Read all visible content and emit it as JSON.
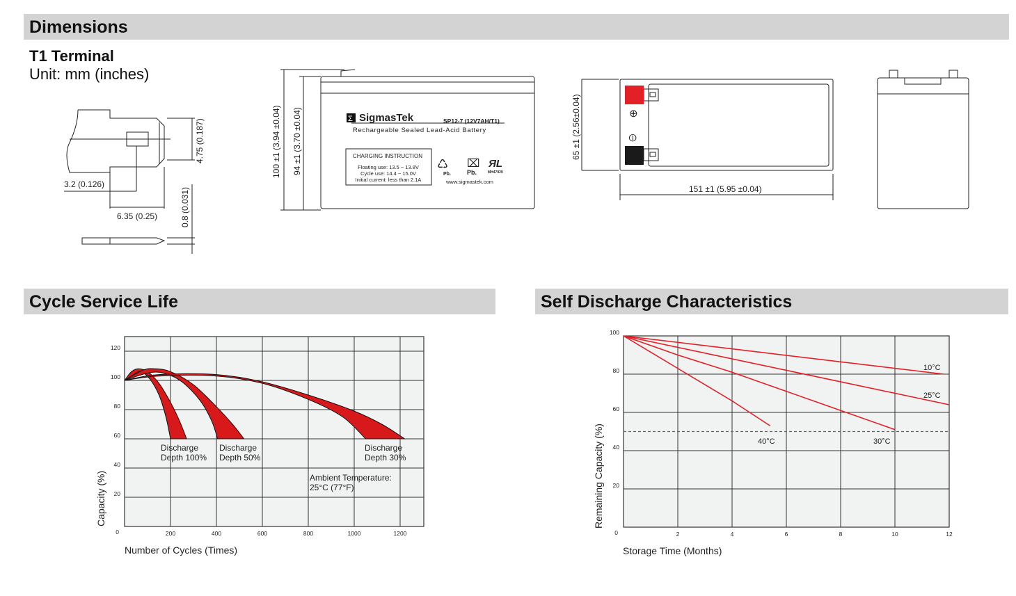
{
  "sections": {
    "dimensions": "Dimensions",
    "cycle": "Cycle Service Life",
    "self_discharge": "Self Discharge Characteristics"
  },
  "terminal": {
    "title": "T1 Terminal",
    "unit": "Unit: mm (inches)",
    "dim_height": "4.75 (0.187)",
    "dim_hole": "3.2 (0.126)",
    "dim_width": "6.35 (0.25)",
    "dim_thickness": "0.8 (0.031)"
  },
  "battery": {
    "brand": "SigmasTek",
    "model": "SP12-7 (12V7AH/T1)",
    "description": "Rechargeable Sealed Lead-Acid Battery",
    "charging_title": "CHARGING INSTRUCTION",
    "charging_lines": [
      "Floating use: 13.5 ~ 13.8V",
      "Cycle use: 14.4 ~ 15.0V",
      "Initial current: less than 2.1A"
    ],
    "recycle_label": "Pb.",
    "bin_label": "Pb.",
    "ul_code": "MH47929",
    "website": "www.sigmastek.com",
    "dim_total_height": "100 ±1 (3.94 ±0.04)",
    "dim_case_height": "94 ±1 (3.70 ±0.04)",
    "dim_depth": "65 ±1 (2.56±0.04)",
    "dim_length": "151 ±1 (5.95 ±0.04)",
    "positive_symbol": "⊕",
    "negative_symbol": "⦶",
    "colors": {
      "positive": "#e32025",
      "negative": "#1a1a1a"
    }
  },
  "chart_data": [
    {
      "type": "area",
      "title": "Cycle Service Life",
      "xlabel": "Number of Cycles (Times)",
      "ylabel": "Capacity (%)",
      "xlim": [
        0,
        1300
      ],
      "ylim": [
        0,
        130
      ],
      "xticks": [
        200,
        400,
        600,
        800,
        1000,
        1200
      ],
      "yticks": [
        0,
        20,
        40,
        60,
        80,
        100,
        120
      ],
      "origin_label": "0",
      "grid": true,
      "band_color": "#d7191c",
      "annotation": [
        "Ambient Temperature:",
        "25°C (77°F)"
      ],
      "series": [
        {
          "name": "Discharge Depth 100%",
          "label": [
            "Discharge",
            "Depth 100%"
          ],
          "outer": [
            [
              0,
              100
            ],
            [
              30,
              106
            ],
            [
              60,
              108
            ],
            [
              100,
              106
            ],
            [
              150,
              98
            ],
            [
              200,
              85
            ],
            [
              240,
              72
            ],
            [
              270,
              60
            ]
          ],
          "inner": [
            [
              0,
              100
            ],
            [
              40,
              104
            ],
            [
              70,
              106
            ],
            [
              110,
              101
            ],
            [
              150,
              90
            ],
            [
              180,
              75
            ],
            [
              200,
              60
            ]
          ]
        },
        {
          "name": "Discharge Depth 50%",
          "label": [
            "Discharge",
            "Depth 50%"
          ],
          "outer": [
            [
              0,
              100
            ],
            [
              80,
              107
            ],
            [
              130,
              108
            ],
            [
              200,
              106
            ],
            [
              300,
              97
            ],
            [
              400,
              82
            ],
            [
              470,
              70
            ],
            [
              520,
              60
            ]
          ],
          "inner": [
            [
              0,
              100
            ],
            [
              100,
              105
            ],
            [
              170,
              105
            ],
            [
              250,
              99
            ],
            [
              330,
              86
            ],
            [
              380,
              72
            ],
            [
              405,
              60
            ]
          ]
        },
        {
          "name": "Discharge Depth 30%",
          "label": [
            "Discharge",
            "Depth 30%"
          ],
          "outer": [
            [
              0,
              100
            ],
            [
              150,
              104
            ],
            [
              400,
              104
            ],
            [
              600,
              99
            ],
            [
              800,
              90
            ],
            [
              1000,
              79
            ],
            [
              1120,
              70
            ],
            [
              1220,
              60
            ]
          ],
          "inner": [
            [
              0,
              100
            ],
            [
              150,
              103
            ],
            [
              400,
              103
            ],
            [
              600,
              98
            ],
            [
              800,
              87
            ],
            [
              950,
              75
            ],
            [
              1050,
              60
            ]
          ]
        }
      ]
    },
    {
      "type": "line",
      "title": "Self Discharge Characteristics",
      "xlabel": "Storage Time (Months)",
      "ylabel": "Remaining Capacity (%)",
      "xlim": [
        0,
        12
      ],
      "ylim": [
        0,
        100
      ],
      "xticks": [
        2,
        4,
        6,
        8,
        10,
        12
      ],
      "yticks": [
        0,
        20,
        40,
        60,
        80,
        100
      ],
      "origin_label": "0",
      "grid": true,
      "reference_line": 50,
      "line_color": "#e32025",
      "series": [
        {
          "name": "10°C",
          "points": [
            [
              0,
              100
            ],
            [
              11.8,
              80
            ]
          ]
        },
        {
          "name": "25°C",
          "points": [
            [
              0,
              100
            ],
            [
              12,
              64
            ]
          ]
        },
        {
          "name": "30°C",
          "points": [
            [
              0,
              100
            ],
            [
              2,
              90
            ],
            [
              4,
              81
            ],
            [
              6,
              71
            ],
            [
              8,
              61
            ],
            [
              10,
              51
            ]
          ]
        },
        {
          "name": "40°C",
          "points": [
            [
              0,
              100
            ],
            [
              2,
              83
            ],
            [
              4,
              66
            ],
            [
              5.4,
              53
            ]
          ]
        }
      ]
    }
  ]
}
